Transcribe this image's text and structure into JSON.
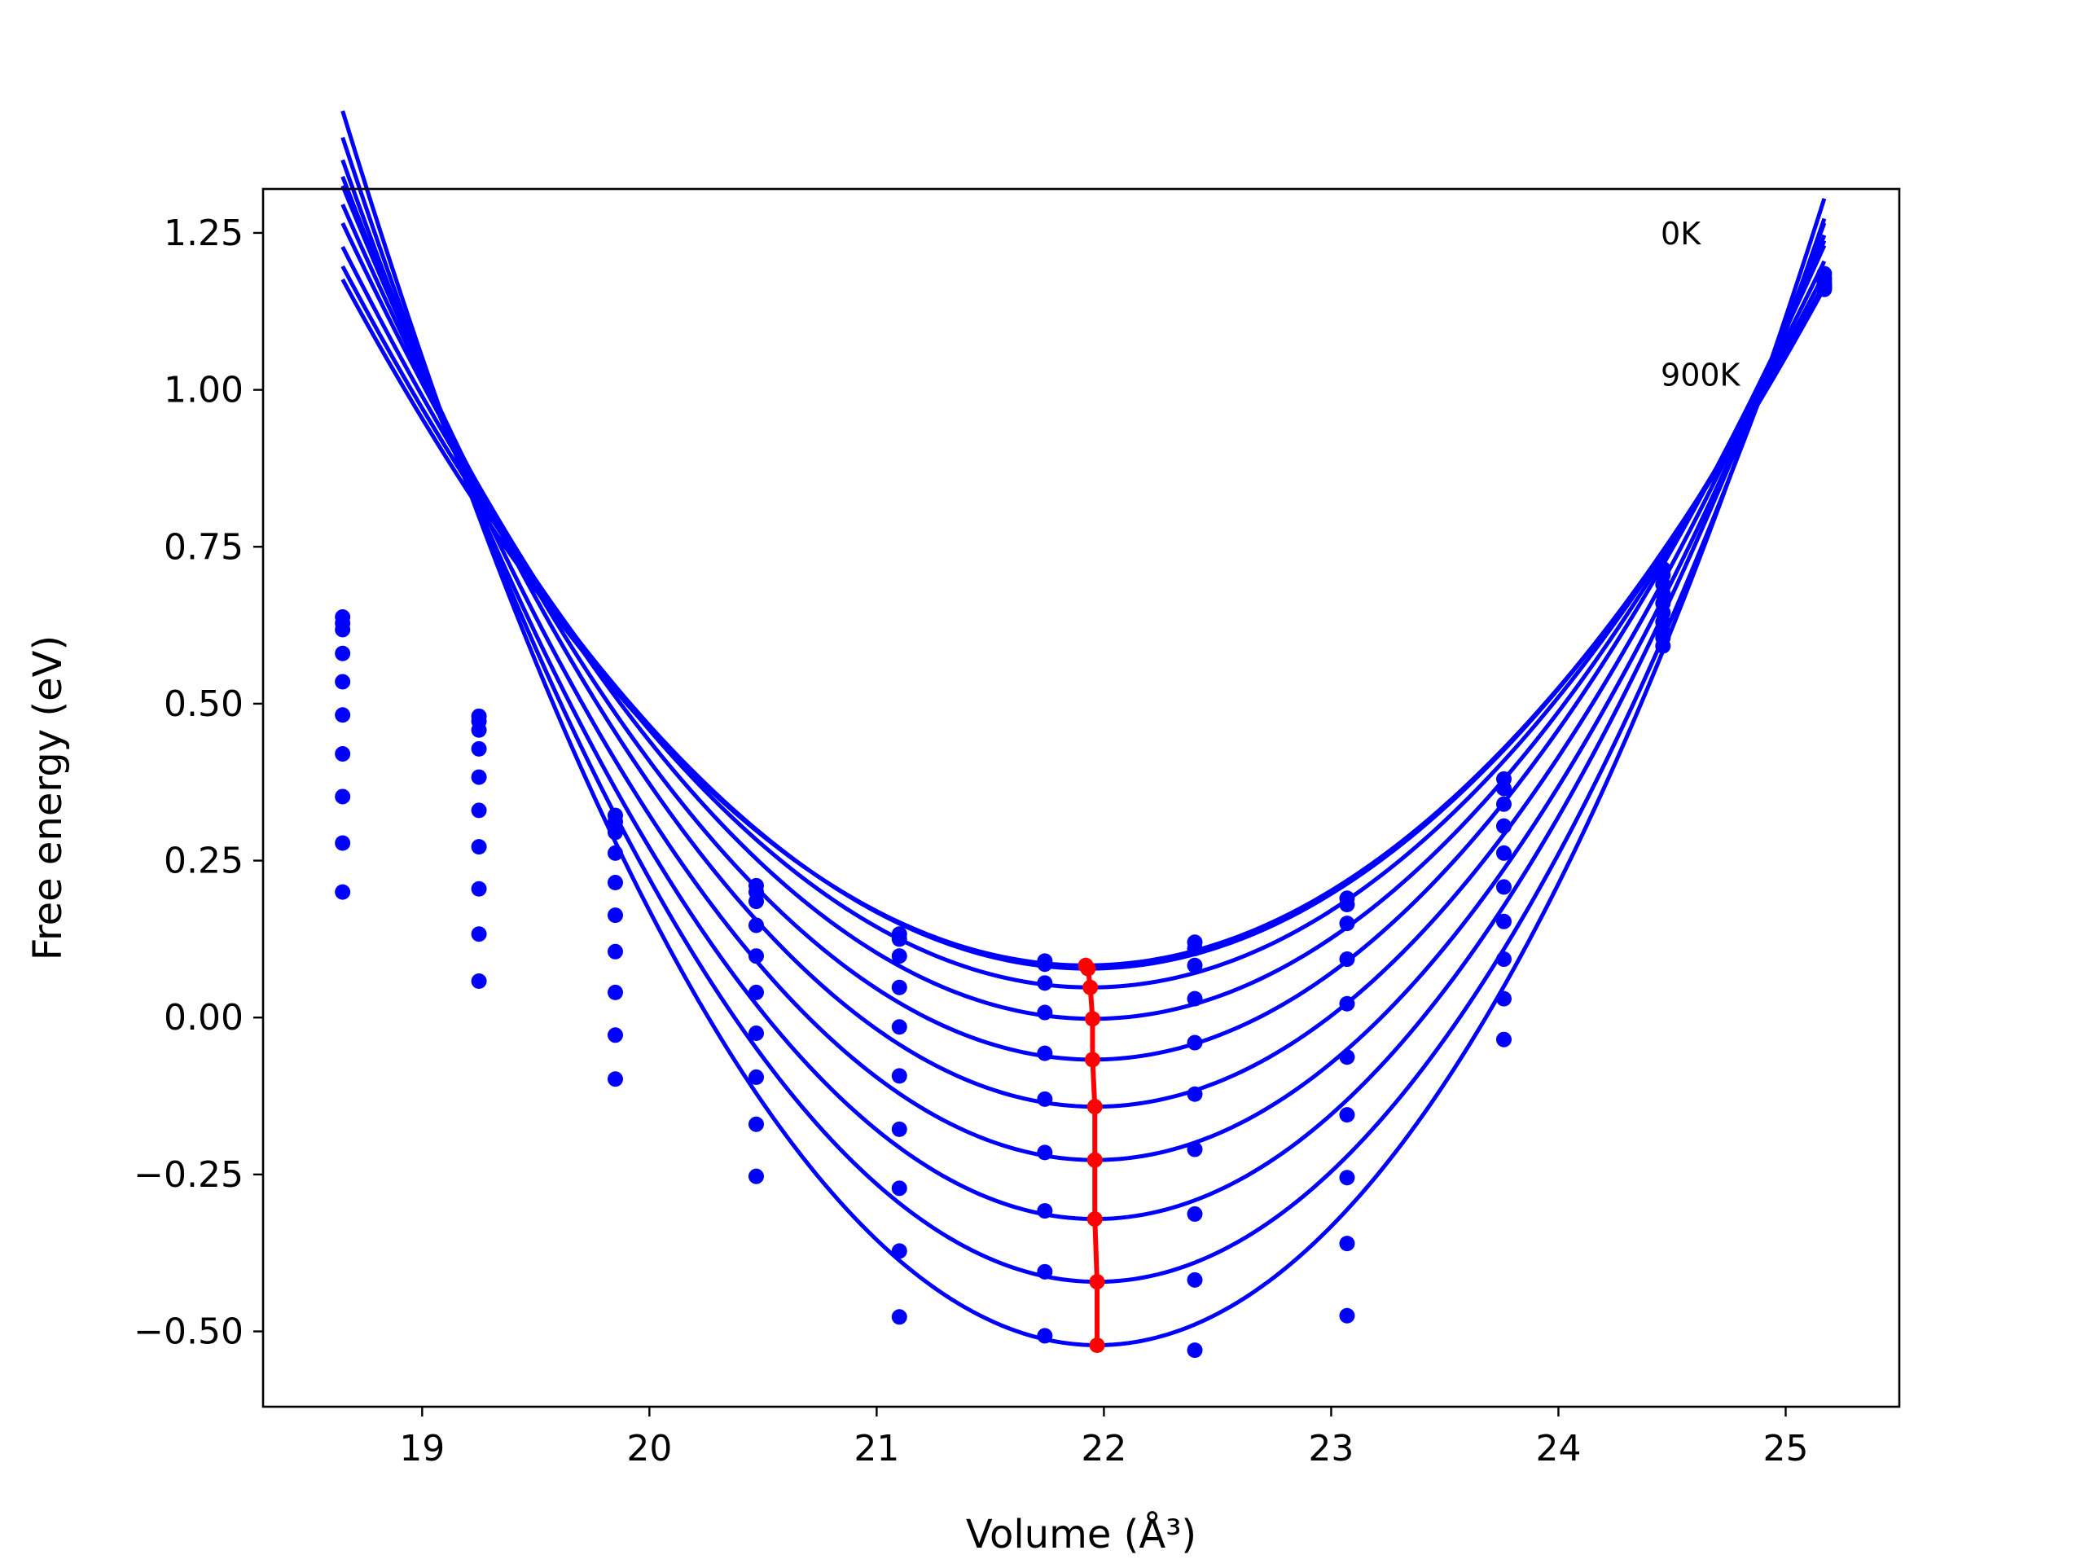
{
  "chart_data": {
    "type": "line",
    "title": "",
    "xlabel": "Volume (Å³)",
    "ylabel": "Free energy (eV)",
    "xlim": [
      18.3,
      25.5
    ],
    "ylim": [
      -0.62,
      1.32
    ],
    "xticks": [
      19,
      20,
      21,
      22,
      23,
      24,
      25
    ],
    "xtick_labels": [
      "19",
      "20",
      "21",
      "22",
      "23",
      "24",
      "25"
    ],
    "yticks": [
      -0.5,
      -0.25,
      0.0,
      0.25,
      0.5,
      0.75,
      1.0,
      1.25
    ],
    "ytick_labels": [
      "−0.50",
      "−0.25",
      "0.00",
      "0.25",
      "0.50",
      "0.75",
      "1.00",
      "1.25"
    ],
    "grid": false,
    "annotations": [
      {
        "text": "0K",
        "x": 24.45,
        "y": 1.25
      },
      {
        "text": "900K",
        "x": 24.45,
        "y": 1.025
      }
    ],
    "colors": {
      "curves": "#0000ff",
      "points": "#0000ff",
      "minimum_path": "#ff0000"
    },
    "x_points": [
      18.65,
      19.25,
      19.85,
      20.47,
      21.1,
      21.74,
      22.4,
      23.07,
      23.76,
      24.46,
      25.17
    ],
    "x_fit_range": [
      18.65,
      25.17
    ],
    "series": [
      {
        "min_x": 21.92,
        "min_y": 0.083,
        "coef": 0.1022,
        "points": [
          0.638,
          0.48,
          0.322,
          0.21,
          0.133,
          0.09,
          0.12,
          0.19,
          0.38,
          0.715,
          1.185
        ]
      },
      {
        "min_x": 21.93,
        "min_y": 0.078,
        "coef": 0.104,
        "points": [
          0.628,
          0.472,
          0.312,
          0.2,
          0.125,
          0.085,
          0.11,
          0.18,
          0.365,
          0.705,
          1.178
        ]
      },
      {
        "min_x": 21.94,
        "min_y": 0.048,
        "coef": 0.109,
        "points": [
          0.618,
          0.458,
          0.295,
          0.185,
          0.098,
          0.055,
          0.083,
          0.15,
          0.34,
          0.69,
          1.175
        ]
      },
      {
        "min_x": 21.95,
        "min_y": -0.002,
        "coef": 0.1164,
        "points": [
          0.58,
          0.428,
          0.262,
          0.147,
          0.048,
          0.008,
          0.03,
          0.093,
          0.305,
          0.675,
          1.17
        ]
      },
      {
        "min_x": 21.95,
        "min_y": -0.067,
        "coef": 0.1251,
        "points": [
          0.535,
          0.383,
          0.215,
          0.098,
          -0.015,
          -0.057,
          -0.04,
          0.022,
          0.262,
          0.66,
          1.168
        ]
      },
      {
        "min_x": 21.96,
        "min_y": -0.142,
        "coef": 0.1339,
        "points": [
          0.482,
          0.33,
          0.163,
          0.04,
          -0.093,
          -0.13,
          -0.122,
          -0.063,
          0.208,
          0.645,
          1.165
        ]
      },
      {
        "min_x": 21.96,
        "min_y": -0.227,
        "coef": 0.143,
        "points": [
          0.42,
          0.272,
          0.105,
          -0.025,
          -0.178,
          -0.215,
          -0.21,
          -0.155,
          0.153,
          0.63,
          1.165
        ]
      },
      {
        "min_x": 21.96,
        "min_y": -0.321,
        "coef": 0.154,
        "points": [
          0.352,
          0.205,
          0.04,
          -0.095,
          -0.272,
          -0.308,
          -0.313,
          -0.255,
          0.093,
          0.615,
          1.163
        ]
      },
      {
        "min_x": 21.97,
        "min_y": -0.421,
        "coef": 0.1654,
        "points": [
          0.278,
          0.133,
          -0.028,
          -0.17,
          -0.372,
          -0.405,
          -0.418,
          -0.36,
          0.03,
          0.605,
          1.163
        ]
      },
      {
        "min_x": 21.97,
        "min_y": -0.522,
        "coef": 0.1784,
        "points": [
          0.2,
          0.058,
          -0.098,
          -0.253,
          -0.477,
          -0.507,
          -0.53,
          -0.475,
          -0.035,
          0.592,
          1.16
        ]
      }
    ]
  }
}
